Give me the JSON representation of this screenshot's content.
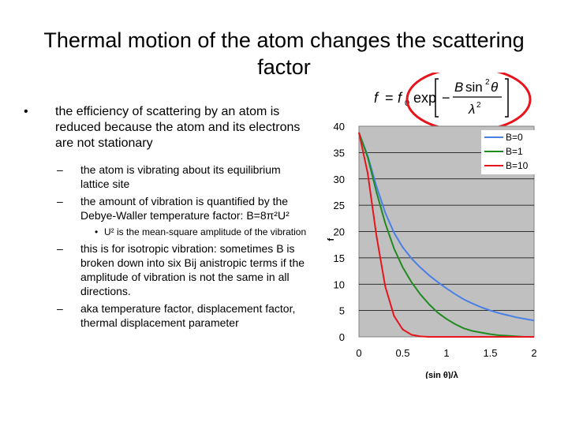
{
  "slide": {
    "title": "Thermal motion of the atom changes the scattering factor",
    "bullet_1": "the efficiency of scattering by an atom is reduced because the atom and its electrons are not stationary",
    "sub_1": "the atom is vibrating about its equilibrium lattice site",
    "sub_2": "the amount of vibration is quantified by the Debye-Waller temperature factor: B=8π²U²",
    "sub_sub_1": "U² is the mean-square amplitude of the vibration",
    "sub_3": "this is for isotropic vibration: sometimes B is broken down into six Bij anistropic terms if the amplitude of vibration is not the same in all directions.",
    "sub_4": "aka temperature factor, displacement factor, thermal displacement parameter",
    "bullet_marker": "•",
    "dash_marker": "–"
  },
  "formula": {
    "text": "f = f0 exp[−B sin²θ / λ²]",
    "highlight_color": "#e8141c"
  },
  "chart_data": {
    "type": "line",
    "xlabel": "(sin θ)/λ",
    "ylabel": "f",
    "xlim": [
      0,
      2
    ],
    "ylim": [
      0,
      40
    ],
    "x_ticks": [
      "0",
      "0.5",
      "1",
      "1.5",
      "2"
    ],
    "y_ticks": [
      "0",
      "5",
      "10",
      "15",
      "20",
      "25",
      "30",
      "35",
      "40"
    ],
    "grid": "horizontal",
    "legend_position": "top-right",
    "plot_background": "#c0c0c0",
    "x": [
      0,
      0.1,
      0.2,
      0.3,
      0.4,
      0.5,
      0.6,
      0.7,
      0.8,
      0.9,
      1.0,
      1.1,
      1.2,
      1.3,
      1.4,
      1.5,
      1.6,
      1.7,
      1.8,
      1.9,
      2.0
    ],
    "series": [
      {
        "name": "B=0",
        "color": "#4a7fe6",
        "values": [
          38.8,
          34.4,
          28.6,
          23.6,
          19.8,
          17.0,
          14.9,
          13.2,
          11.7,
          10.4,
          9.2,
          8.1,
          7.1,
          6.3,
          5.6,
          5.0,
          4.5,
          4.1,
          3.7,
          3.4,
          3.1
        ]
      },
      {
        "name": "B=1",
        "color": "#1f8a1f",
        "values": [
          38.8,
          34.1,
          27.5,
          21.6,
          16.8,
          13.2,
          10.4,
          8.1,
          6.2,
          4.6,
          3.4,
          2.4,
          1.6,
          1.1,
          0.8,
          0.5,
          0.3,
          0.2,
          0.1,
          0.0,
          0.0
        ]
      },
      {
        "name": "B=10",
        "color": "#e8141c",
        "values": [
          38.8,
          31.1,
          19.2,
          9.6,
          4.0,
          1.4,
          0.4,
          0.1,
          0.0,
          0.0,
          0.0,
          0.0,
          0.0,
          0.0,
          0.0,
          0.0,
          0.0,
          0.0,
          0.0,
          0.0,
          0.0
        ]
      }
    ]
  }
}
